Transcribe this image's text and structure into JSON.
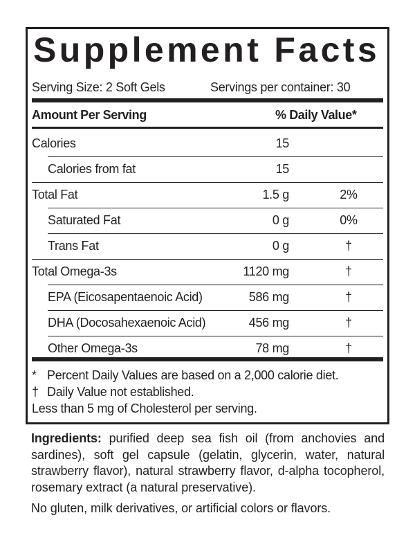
{
  "title": "Supplement Facts",
  "serving_size": "Serving Size: 2 Soft Gels",
  "servings_per_container": "Servings per container: 30",
  "header": {
    "amount": "Amount Per Serving",
    "dv": "% Daily Value*"
  },
  "rows": [
    {
      "name": "Calories",
      "amount": "15",
      "dv": ""
    },
    {
      "name": "Calories from fat",
      "amount": "15",
      "dv": ""
    },
    {
      "name": "Total Fat",
      "amount": "1.5 g",
      "dv": "2%"
    },
    {
      "name": "Saturated Fat",
      "amount": "0 g",
      "dv": "0%"
    },
    {
      "name": "Trans Fat",
      "amount": "0 g",
      "dv": "†"
    },
    {
      "name": "Total Omega-3s",
      "amount": "1120 mg",
      "dv": "†"
    },
    {
      "name": "EPA (Eicosapentaenoic Acid)",
      "amount": "586 mg",
      "dv": "†"
    },
    {
      "name": "DHA (Docosahexaenoic Acid)",
      "amount": "456 mg",
      "dv": "†"
    },
    {
      "name": "Other Omega-3s",
      "amount": "78 mg",
      "dv": "†"
    }
  ],
  "footnotes": [
    {
      "mark": "*",
      "text": "Percent Daily Values are based on a 2,000 calorie diet."
    },
    {
      "mark": "†",
      "text": "Daily Value not established."
    },
    {
      "mark": "",
      "text": "Less than 5 mg of Cholesterol per serving."
    }
  ],
  "ingredients": {
    "label": "Ingredients:",
    "text": "purified deep sea fish oil (from anchovies and sardines), soft gel capsule (gelatin, glycerin, water, natural strawberry flavor), natural strawberry flavor, d-alpha tocopherol, rosemary extract (a natural preservative)."
  },
  "note": "No gluten, milk derivatives, or artificial colors or flavors."
}
